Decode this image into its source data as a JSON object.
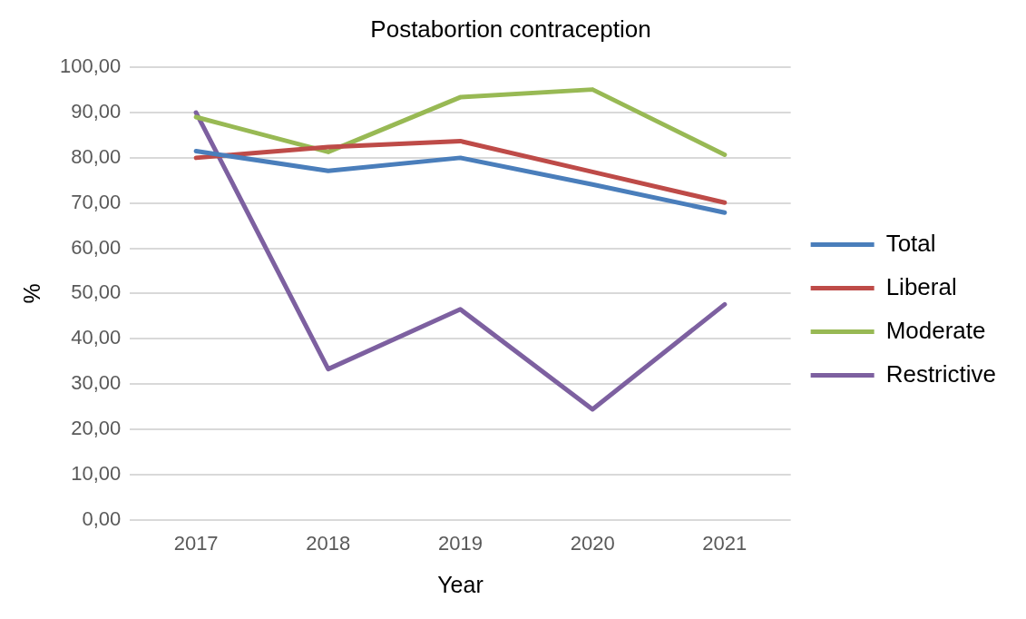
{
  "chart_data": {
    "type": "line",
    "title": "Postabortion contraception",
    "xlabel": "Year",
    "ylabel": "%",
    "categories": [
      "2017",
      "2018",
      "2019",
      "2020",
      "2021"
    ],
    "series": [
      {
        "name": "Total",
        "color": "#4a7ebb",
        "values": [
          81.5,
          77.1,
          80.0,
          74.1,
          67.9
        ]
      },
      {
        "name": "Liberal",
        "color": "#be4b48",
        "values": [
          80.0,
          82.4,
          83.7,
          76.9,
          70.1
        ]
      },
      {
        "name": "Moderate",
        "color": "#98b954",
        "values": [
          89.0,
          81.3,
          93.4,
          95.1,
          80.7
        ]
      },
      {
        "name": "Restrictive",
        "color": "#7d60a0",
        "values": [
          90.0,
          33.3,
          46.5,
          24.4,
          47.6
        ]
      }
    ],
    "ylim": [
      0,
      100
    ],
    "yticks": [
      {
        "value": 0,
        "label": "0,00"
      },
      {
        "value": 10,
        "label": "10,00"
      },
      {
        "value": 20,
        "label": "20,00"
      },
      {
        "value": 30,
        "label": "30,00"
      },
      {
        "value": 40,
        "label": "40,00"
      },
      {
        "value": 50,
        "label": "50,00"
      },
      {
        "value": 60,
        "label": "60,00"
      },
      {
        "value": 70,
        "label": "70,00"
      },
      {
        "value": 80,
        "label": "80,00"
      },
      {
        "value": 90,
        "label": "90,00"
      },
      {
        "value": 100,
        "label": "100,00"
      }
    ],
    "grid": "y",
    "legend": "right",
    "marker": "none",
    "line_style": "solid"
  }
}
